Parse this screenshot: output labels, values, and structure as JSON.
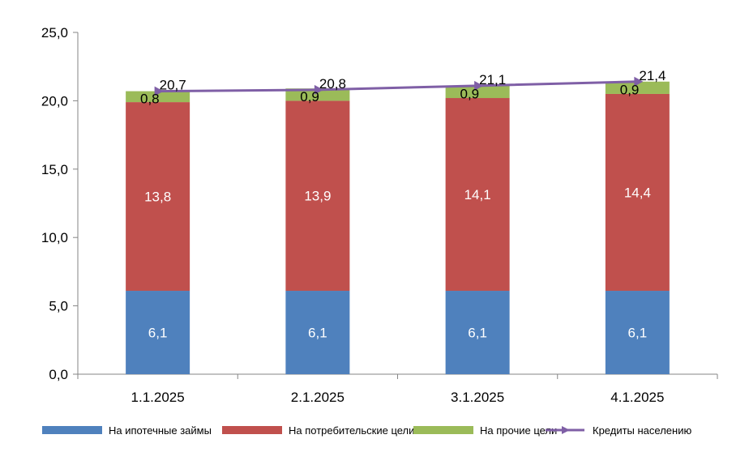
{
  "chart_data": {
    "type": "bar",
    "stacked": true,
    "categories": [
      "1.1.2025",
      "2.1.2025",
      "3.1.2025",
      "4.1.2025"
    ],
    "series": [
      {
        "name": "На ипотечные займы",
        "values": [
          6.1,
          6.1,
          6.1,
          6.1
        ],
        "labels": [
          "6,1",
          "6,1",
          "6,1",
          "6,1"
        ],
        "color": "#4F81BD"
      },
      {
        "name": "На потребительские цели",
        "values": [
          13.8,
          13.9,
          14.1,
          14.4
        ],
        "labels": [
          "13,8",
          "13,9",
          "14,1",
          "14,4"
        ],
        "color": "#C0504D"
      },
      {
        "name": "На прочие цели",
        "values": [
          0.8,
          0.9,
          0.9,
          0.9
        ],
        "labels": [
          "0,8",
          "0,9",
          "0,9",
          "0,9"
        ],
        "color": "#9BBB59"
      }
    ],
    "line_series": {
      "name": "Кредиты населению",
      "type": "line",
      "values": [
        20.7,
        20.8,
        21.1,
        21.4
      ],
      "labels": [
        "20,7",
        "20,8",
        "21,1",
        "21,4"
      ],
      "color": "#7F5FA6"
    },
    "ylim": [
      0,
      25
    ],
    "yticks": [
      0,
      5,
      10,
      15,
      20,
      25
    ],
    "ytick_labels": [
      "0,0",
      "5,0",
      "10,0",
      "15,0",
      "20,0",
      "25,0"
    ],
    "legend_position": "bottom",
    "grid": false
  }
}
